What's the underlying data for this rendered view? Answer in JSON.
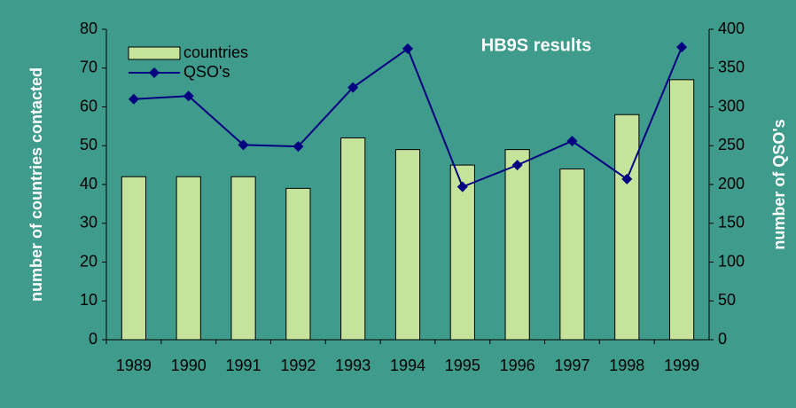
{
  "chart_data": {
    "type": "bar",
    "title": "HB9S results",
    "categories": [
      "1989",
      "1990",
      "1991",
      "1992",
      "1993",
      "1994",
      "1995",
      "1996",
      "1997",
      "1998",
      "1999"
    ],
    "series": [
      {
        "name": "countries",
        "type": "bar",
        "color": "#c6e39c",
        "values": [
          42,
          42,
          42,
          39,
          52,
          49,
          45,
          49,
          44,
          58,
          67
        ]
      },
      {
        "name": "QSO's",
        "type": "line",
        "axis": "y2",
        "color": "#000080",
        "values": [
          310,
          314,
          251,
          249,
          325,
          375,
          197,
          225,
          256,
          207,
          377
        ]
      }
    ],
    "ylabel": "number of countries contacted",
    "y2label": "number of QSO's",
    "ylim": [
      0,
      80
    ],
    "yticks": [
      0,
      10,
      20,
      30,
      40,
      50,
      60,
      70,
      80
    ],
    "y2lim": [
      0,
      400
    ],
    "y2ticks": [
      0,
      50,
      100,
      150,
      200,
      250,
      300,
      350,
      400
    ],
    "legend": "top-left",
    "grid": false
  }
}
